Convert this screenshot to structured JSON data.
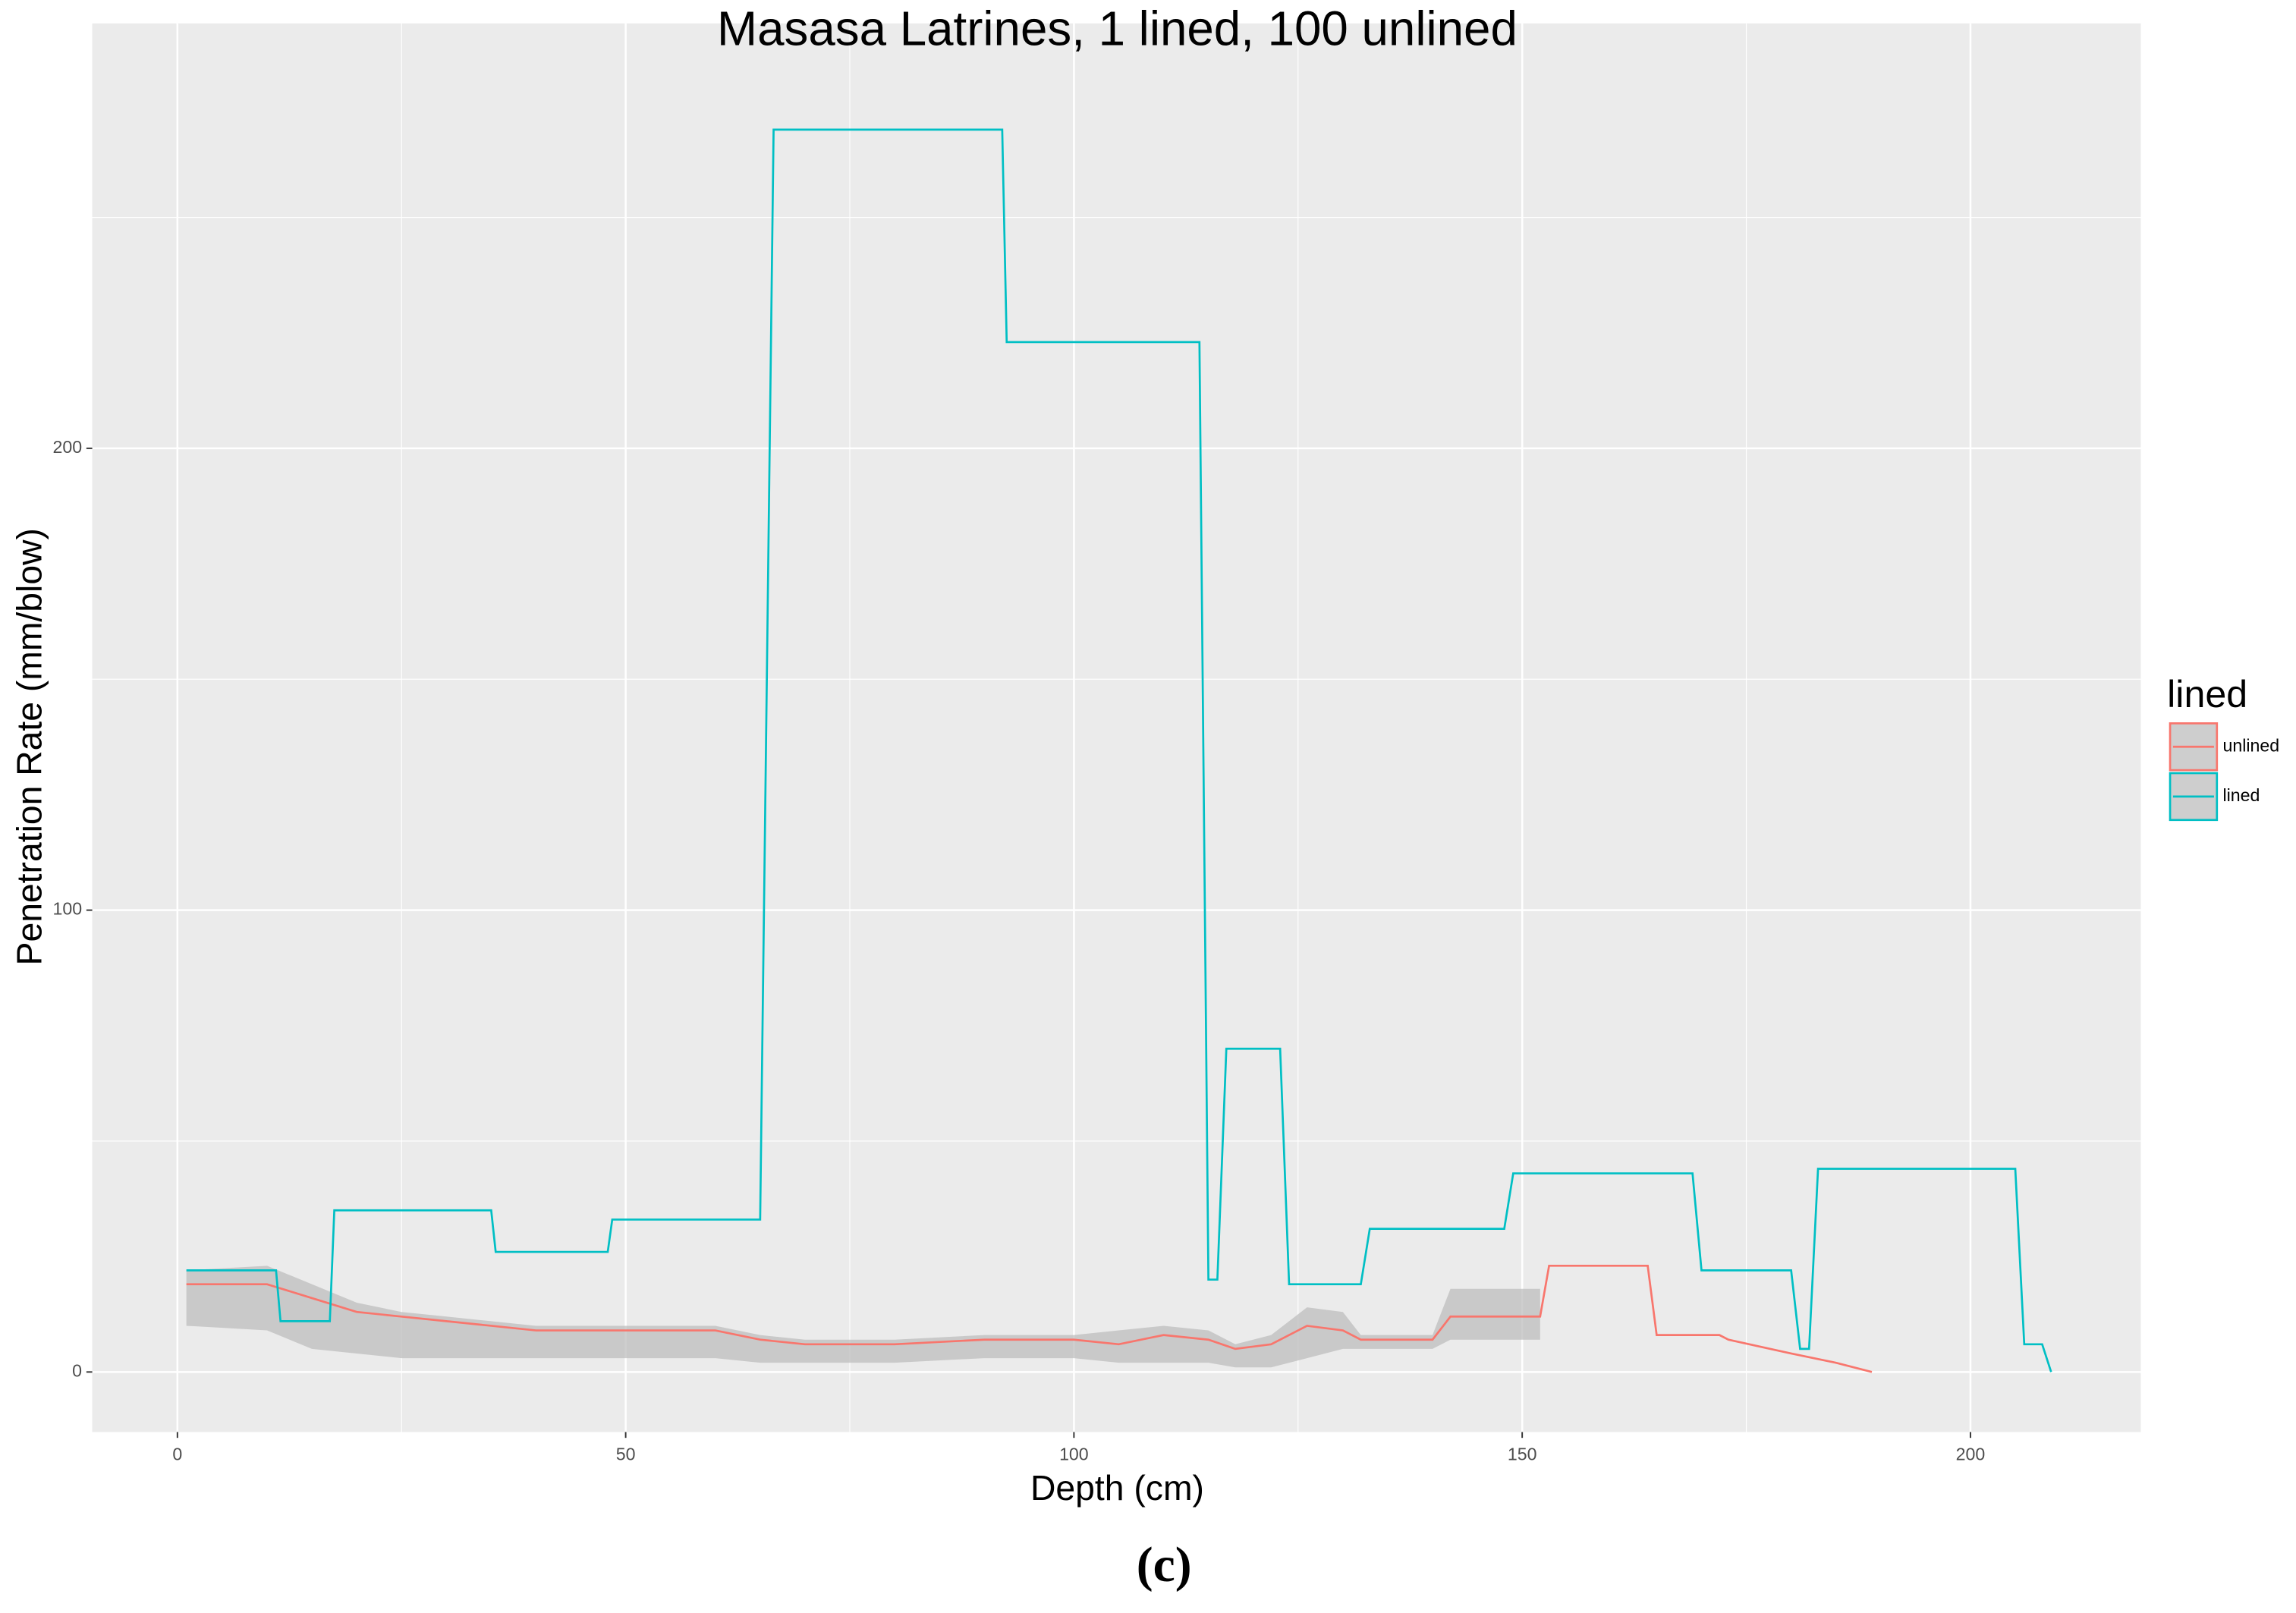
{
  "chart_data": {
    "type": "line",
    "title": "Masasa Latrines, 1 lined, 100 unlined",
    "x_label": "Depth (cm)",
    "y_label": "Penetration Rate (mm/blow)",
    "caption": "(c)",
    "xlim": [
      -9.5,
      219
    ],
    "ylim": [
      -13,
      292
    ],
    "xticks": [
      0,
      50,
      100,
      150,
      200
    ],
    "yticks": [
      0,
      100,
      200
    ],
    "x_minor_grid": [
      25,
      75,
      125,
      175
    ],
    "y_minor_grid": [
      50,
      150,
      250
    ],
    "grid": true,
    "legend": {
      "title": "lined",
      "position": "right"
    },
    "series": [
      {
        "name": "unlined",
        "color": "#F8766D",
        "ribbon_color": "#bdbdbd",
        "x": [
          1,
          10,
          15,
          20,
          25,
          30,
          35,
          40,
          50,
          60,
          65,
          70,
          80,
          90,
          100,
          105,
          110,
          115,
          118,
          122,
          126,
          130,
          132,
          140,
          142,
          152,
          153,
          164,
          165,
          172,
          173,
          180,
          185,
          189
        ],
        "values": [
          19,
          19,
          16,
          13,
          12,
          11,
          10,
          9,
          9,
          9,
          7,
          6,
          6,
          7,
          7,
          6,
          8,
          7,
          5,
          6,
          10,
          9,
          7,
          7,
          12,
          12,
          23,
          23,
          8,
          8,
          7,
          4,
          2,
          0
        ],
        "lower": [
          10,
          9,
          5,
          4,
          3,
          3,
          3,
          3,
          3,
          3,
          2,
          2,
          2,
          3,
          3,
          2,
          2,
          2,
          1,
          1,
          3,
          5,
          5,
          5,
          7,
          7,
          null,
          null,
          null,
          null,
          null,
          null,
          null,
          null
        ],
        "upper": [
          22,
          23,
          19,
          15,
          13,
          12,
          11,
          10,
          10,
          10,
          8,
          7,
          7,
          8,
          8,
          9,
          10,
          9,
          6,
          8,
          14,
          13,
          8,
          8,
          18,
          18,
          null,
          null,
          null,
          null,
          null,
          null,
          null,
          null
        ]
      },
      {
        "name": "lined",
        "color": "#00BFC4",
        "x": [
          1,
          11,
          11.5,
          17,
          17.5,
          35,
          35.5,
          48,
          48.5,
          65,
          66.5,
          92,
          92.5,
          114,
          115,
          116,
          117,
          123,
          124,
          132,
          133,
          148,
          149,
          169,
          170,
          180,
          181,
          182,
          183,
          205,
          206,
          208,
          209
        ],
        "values": [
          22,
          22,
          11,
          11,
          35,
          35,
          26,
          26,
          33,
          33,
          269,
          269,
          223,
          223,
          20,
          20,
          70,
          70,
          19,
          19,
          31,
          31,
          43,
          43,
          22,
          22,
          5,
          5,
          44,
          44,
          6,
          6,
          0
        ]
      }
    ]
  }
}
